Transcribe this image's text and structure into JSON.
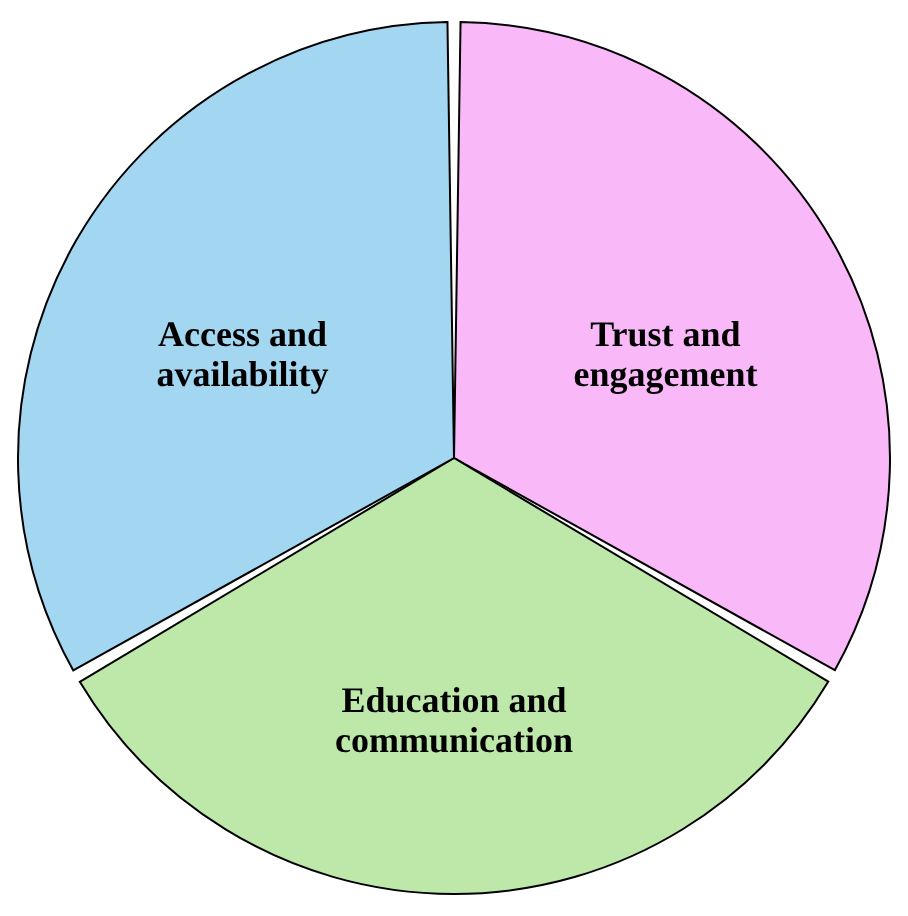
{
  "chart_data": {
    "type": "pie",
    "categories": [
      "Trust and engagement",
      "Education and communication",
      "Access and availability"
    ],
    "values": [
      33.33,
      33.33,
      33.34
    ],
    "colors": [
      "#f9b9f9",
      "#bde8a9",
      "#a3d6f1"
    ]
  }
}
